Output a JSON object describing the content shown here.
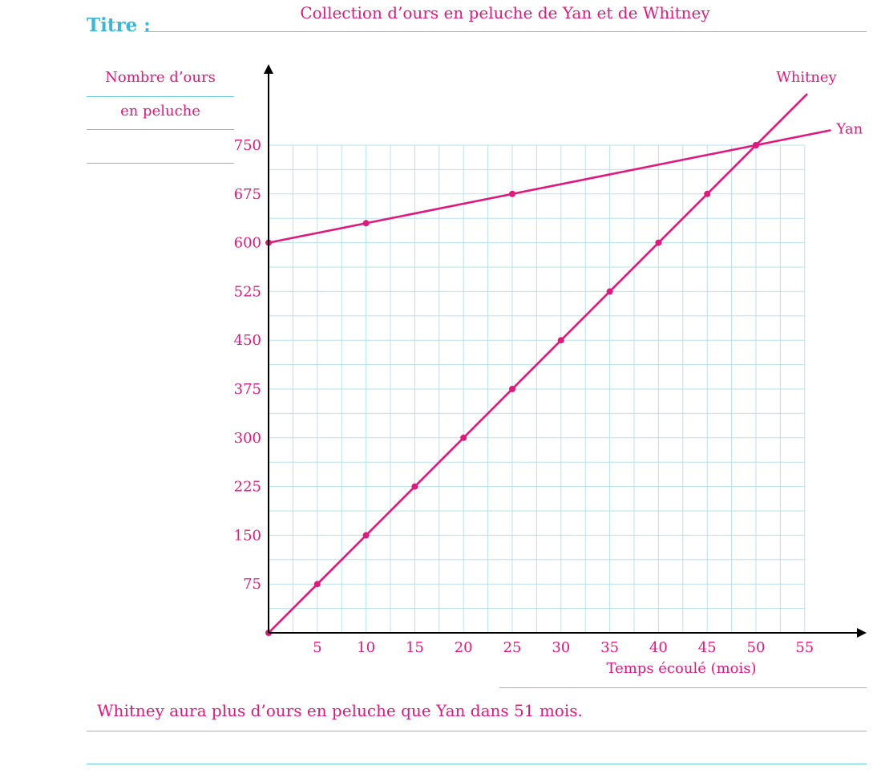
{
  "header": {
    "titre_label": "Titre :",
    "chart_title": "Collection d’ours en peluche de Yan et de Whitney"
  },
  "y_axis_label": {
    "line1": "Nombre d’ours",
    "line2": "en peluche"
  },
  "answer_text": "Whitney aura plus d’ours en peluche que Yan dans 51 mois.",
  "colors": {
    "accent": "#e0197d",
    "grid": "#b8e2ee",
    "rule": "#6cc5d9",
    "title_label": "#3db8d4",
    "axis": "#000000"
  },
  "chart_data": {
    "type": "line",
    "title": "Collection d’ours en peluche de Yan et de Whitney",
    "xlabel": "Temps écoulé (mois)",
    "ylabel": "Nombre d’ours en peluche",
    "xlim": [
      0,
      55
    ],
    "ylim": [
      0,
      750
    ],
    "x_ticks": [
      5,
      10,
      15,
      20,
      25,
      30,
      35,
      40,
      45,
      50,
      55
    ],
    "y_ticks": [
      75,
      150,
      225,
      300,
      375,
      450,
      525,
      600,
      675,
      750
    ],
    "grid": true,
    "series": [
      {
        "name": "Yan",
        "points": [
          [
            0,
            600
          ],
          [
            10,
            630
          ],
          [
            25,
            675
          ],
          [
            50,
            750
          ]
        ],
        "line_extends_to": [
          57.6,
          772.8
        ]
      },
      {
        "name": "Whitney",
        "points": [
          [
            0,
            0
          ],
          [
            5,
            75
          ],
          [
            10,
            150
          ],
          [
            15,
            225
          ],
          [
            20,
            300
          ],
          [
            25,
            375
          ],
          [
            30,
            450
          ],
          [
            35,
            525
          ],
          [
            40,
            600
          ],
          [
            45,
            675
          ],
          [
            50,
            750
          ]
        ],
        "line_extends_to": [
          55.2,
          828
        ]
      }
    ]
  }
}
